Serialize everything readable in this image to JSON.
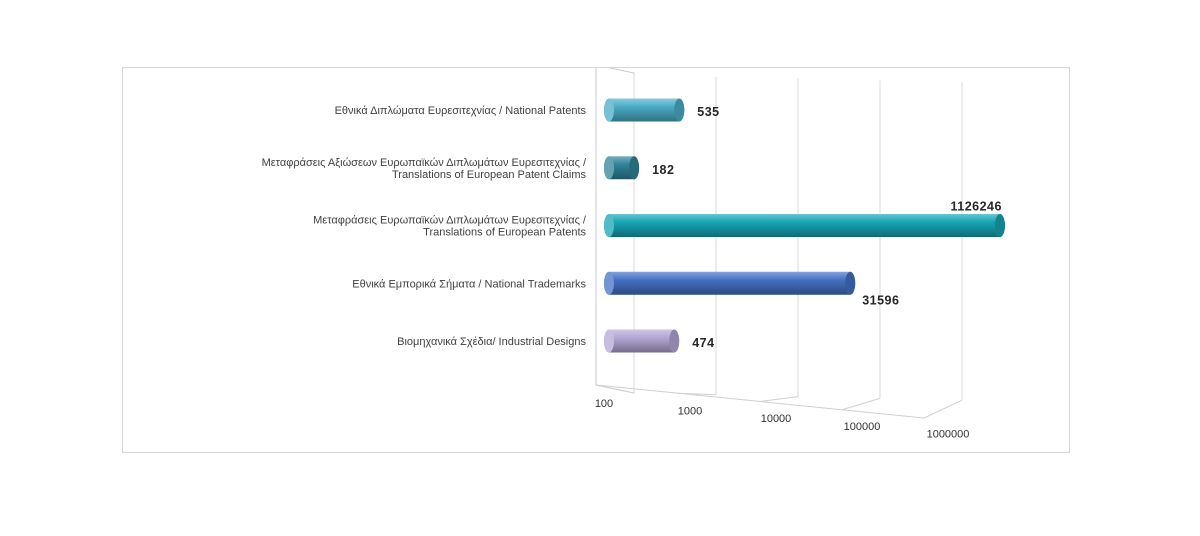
{
  "chart_data": {
    "type": "bar",
    "orientation": "horizontal",
    "style": "3d-cylinder",
    "x_scale": "log",
    "xlim": [
      100,
      1000000
    ],
    "x_ticks": [
      "100",
      "1000",
      "10000",
      "100000",
      "1000000"
    ],
    "grid": true,
    "legend": "none",
    "title": "",
    "xlabel": "",
    "ylabel": "",
    "bars": [
      {
        "label_lines": [
          "Εθνικά Διπλώματα Ευρεσιτεχνίας / National Patents"
        ],
        "value": 535,
        "value_label": "535",
        "color": "#4bacc6",
        "label_position": "outside"
      },
      {
        "label_lines": [
          "Μεταφράσεις Αξιώσεων Ευρωπαϊκών Διπλωμάτων Ευρεσιτεχνίας /",
          "Translations of European Patent Claims"
        ],
        "value": 182,
        "value_label": "182",
        "color": "#31849b",
        "label_position": "outside"
      },
      {
        "label_lines": [
          "Μεταφράσεις Ευρωπαϊκών Διπλωμάτων Ευρεσιτεχνίας /",
          "Translations of European Patents"
        ],
        "value": 1126246,
        "value_label": "1126246",
        "color": "#17a5b5",
        "label_position": "above-end"
      },
      {
        "label_lines": [
          "Εθνικά Εμπορικά Σήματα / National Trademarks"
        ],
        "value": 31596,
        "value_label": "31596",
        "color": "#4472c4",
        "label_position": "below-end"
      },
      {
        "label_lines": [
          "Βιομηχανικά Σχέδια/ Industrial Designs"
        ],
        "value": 474,
        "value_label": "474",
        "color": "#b4a7d6",
        "label_position": "outside"
      }
    ]
  }
}
